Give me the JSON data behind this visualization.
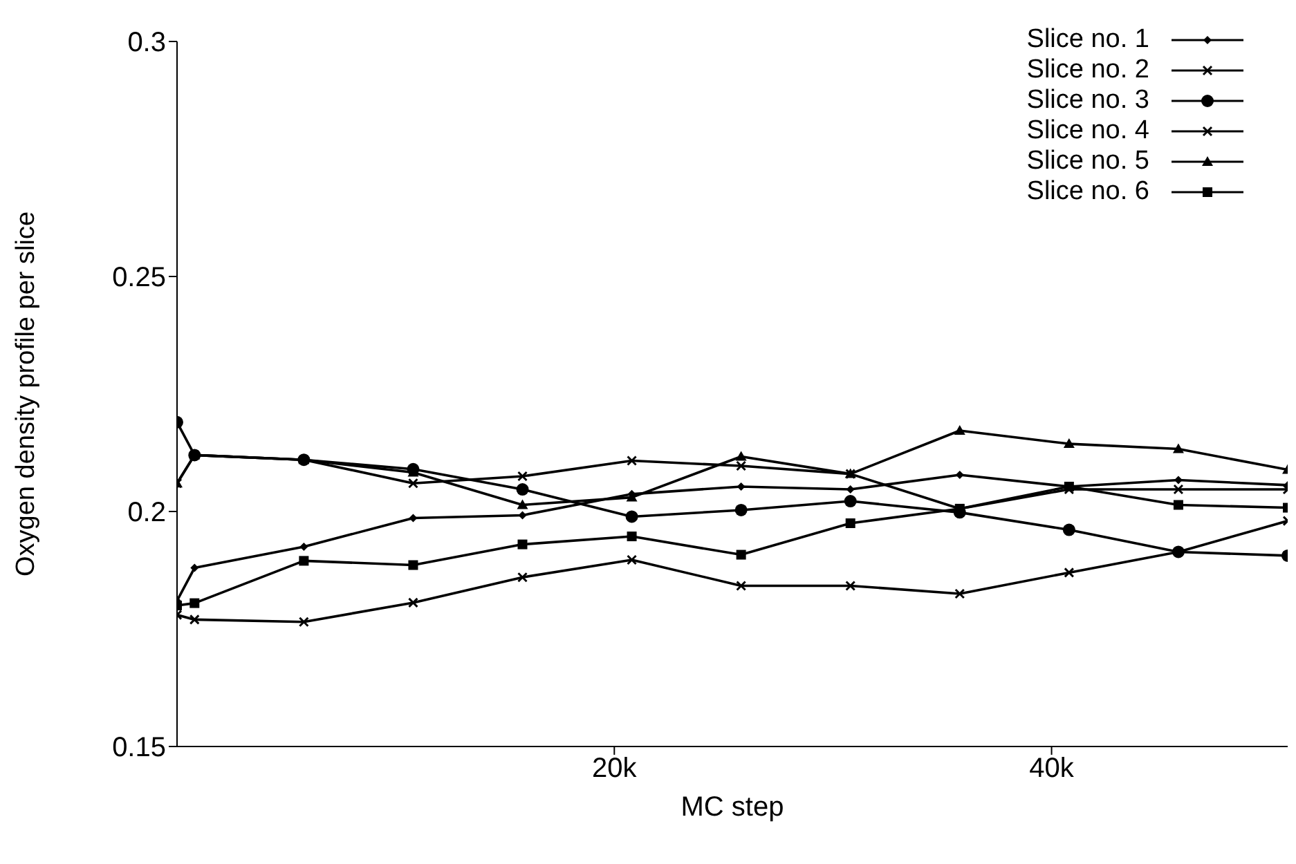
{
  "chart_data": {
    "type": "line",
    "xlabel": "MC step",
    "ylabel": "Oxygen density profile per slice",
    "x": [
      0,
      800,
      5800,
      10800,
      15800,
      20800,
      25800,
      30800,
      35800,
      40800,
      45800,
      50800
    ],
    "xlim": [
      0,
      50800
    ],
    "xticks": [
      {
        "value": 20000,
        "label": "20k"
      },
      {
        "value": 40000,
        "label": "40k"
      }
    ],
    "ylim": [
      0.15,
      0.3
    ],
    "yticks": [
      0.15,
      {
        "value": 0.2,
        "label": "0.2"
      },
      0.25,
      {
        "value": 0.3,
        "label": "0.3"
      }
    ],
    "grid": false,
    "legend": "top right",
    "series": [
      {
        "name": "Slice no. 1",
        "color": "#000000",
        "marker": "diamond",
        "values": [
          0.181,
          0.188,
          0.1925,
          0.1986,
          0.1992,
          0.2037,
          0.2053,
          0.2047,
          0.2078,
          0.2053,
          0.2067,
          0.2056
        ]
      },
      {
        "name": "Slice no. 2",
        "color": "#000000",
        "marker": "cross",
        "values": [
          0.206,
          0.212,
          0.211,
          0.206,
          0.2075,
          0.2108,
          0.2097,
          0.208,
          0.2006,
          0.2047,
          0.2047,
          0.2047
        ]
      },
      {
        "name": "Slice no. 3",
        "color": "#000000",
        "marker": "circle",
        "values": [
          0.219,
          0.212,
          0.211,
          0.209,
          0.2047,
          0.1989,
          0.2003,
          0.2022,
          0.1998,
          0.1961,
          0.1914,
          0.1906
        ]
      },
      {
        "name": "Slice no. 4",
        "color": "#000000",
        "marker": "cross",
        "values": [
          0.178,
          0.177,
          0.1765,
          0.1806,
          0.186,
          0.1897,
          0.1842,
          0.1842,
          0.1825,
          0.187,
          0.1914,
          0.198
        ]
      },
      {
        "name": "Slice no. 5",
        "color": "#000000",
        "marker": "triangle",
        "values": [
          0.206,
          0.212,
          0.211,
          0.2083,
          0.2014,
          0.203,
          0.2117,
          0.208,
          0.2172,
          0.2144,
          0.2133,
          0.2089
        ]
      },
      {
        "name": "Slice no. 6",
        "color": "#000000",
        "marker": "square",
        "values": [
          0.18,
          0.1805,
          0.1895,
          0.1886,
          0.193,
          0.1947,
          0.1908,
          0.1975,
          0.2006,
          0.2053,
          0.2014,
          0.2008
        ]
      }
    ]
  }
}
